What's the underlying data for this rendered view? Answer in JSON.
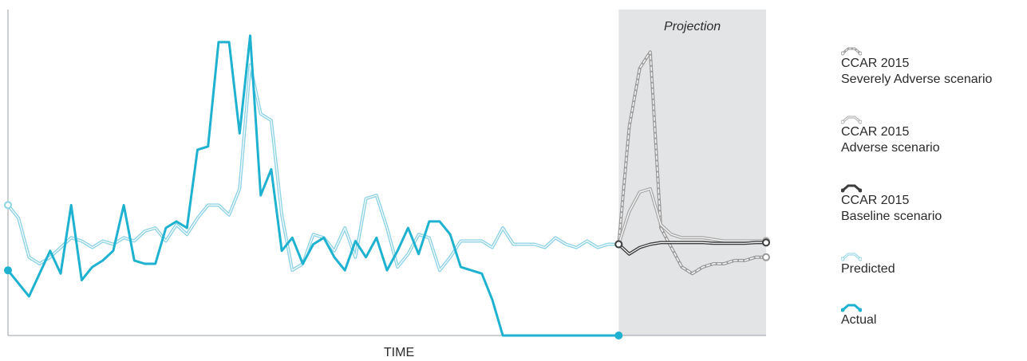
{
  "chart_data": {
    "type": "line",
    "title": "",
    "xlabel": "TIME",
    "ylabel": "",
    "grid": false,
    "legend_position": "right",
    "ylim": [
      0,
      100
    ],
    "projection": {
      "label": "Projection",
      "x_start": 58,
      "x_end": 72,
      "color": "#e3e4e6"
    },
    "series": [
      {
        "id": "severely",
        "name": "CCAR 2015\nSeverely Adverse scenario",
        "color": "#9a9a9a",
        "style": "dashed",
        "x": [
          58,
          59,
          60,
          61,
          62,
          63,
          64,
          65,
          66,
          67,
          68,
          69,
          70,
          71,
          72
        ],
        "values": [
          28,
          64,
          82,
          87,
          33,
          27,
          21,
          19,
          21,
          22,
          22,
          23,
          23,
          24,
          24
        ]
      },
      {
        "id": "adverse",
        "name": "CCAR 2015\nAdverse scenario",
        "color": "#aaaaaa",
        "style": "double",
        "x": [
          58,
          59,
          60,
          61,
          62,
          63,
          64,
          65,
          66,
          67,
          68,
          69,
          70,
          71,
          72
        ],
        "values": [
          28,
          38,
          44,
          45,
          34,
          31,
          30,
          30,
          30,
          29.5,
          29,
          29,
          29,
          29,
          29
        ]
      },
      {
        "id": "baseline",
        "name": "CCAR 2015\nBaseline scenario",
        "color": "#3d3d3d",
        "style": "double",
        "x": [
          58,
          59,
          60,
          61,
          62,
          63,
          64,
          65,
          66,
          67,
          68,
          69,
          70,
          71,
          72
        ],
        "values": [
          28,
          25,
          27,
          28,
          28.5,
          28.5,
          28.5,
          28.5,
          28.5,
          28.3,
          28.3,
          28.3,
          28.3,
          28.5,
          28.5
        ]
      },
      {
        "id": "predicted",
        "name": "Predicted",
        "color": "#8fd3e6",
        "style": "double",
        "x": [
          0,
          1,
          2,
          3,
          4,
          5,
          6,
          7,
          8,
          9,
          10,
          11,
          12,
          13,
          14,
          15,
          16,
          17,
          18,
          19,
          20,
          21,
          22,
          23,
          24,
          25,
          26,
          27,
          28,
          29,
          30,
          31,
          32,
          33,
          34,
          35,
          36,
          37,
          38,
          39,
          40,
          41,
          42,
          43,
          44,
          45,
          46,
          47,
          48,
          49,
          50,
          51,
          52,
          53,
          54,
          55,
          56,
          57,
          58
        ],
        "values": [
          40,
          36,
          24,
          22,
          24,
          27,
          30,
          29,
          27,
          29,
          28,
          30,
          29,
          32,
          33,
          29,
          34,
          31,
          36,
          40,
          40,
          37,
          45,
          83,
          68,
          66,
          37,
          20,
          22,
          31,
          30,
          26,
          33,
          24,
          42,
          43,
          33,
          21,
          25,
          31,
          30,
          20,
          24,
          29,
          29,
          29,
          27,
          33,
          28,
          28,
          28,
          27,
          30,
          28,
          27,
          29,
          27,
          28,
          28
        ]
      },
      {
        "id": "actual",
        "name": "Actual",
        "color": "#1fb2d0",
        "style": "solid",
        "x": [
          0,
          1,
          2,
          3,
          4,
          5,
          6,
          7,
          8,
          9,
          10,
          11,
          12,
          13,
          14,
          15,
          16,
          17,
          18,
          19,
          20,
          21,
          22,
          23,
          24,
          25,
          26,
          27,
          28,
          29,
          30,
          31,
          32,
          33,
          34,
          35,
          36,
          37,
          38,
          39,
          40,
          41,
          42,
          43,
          44,
          45,
          46,
          47,
          48,
          49,
          50,
          51,
          52,
          53,
          54,
          55,
          56,
          57,
          58
        ],
        "values": [
          20,
          16,
          12,
          19,
          26,
          19,
          40,
          17,
          21,
          23,
          26,
          40,
          23,
          22,
          22,
          33,
          35,
          33,
          57,
          58,
          90,
          90,
          62,
          92,
          43,
          51,
          26,
          30,
          22,
          28,
          30,
          24,
          20,
          29,
          24,
          30,
          20,
          26,
          33,
          25,
          35,
          35,
          31,
          21,
          20,
          19,
          11,
          0,
          0,
          0,
          0,
          0,
          0,
          0,
          0,
          0,
          0,
          0,
          0
        ]
      }
    ]
  }
}
